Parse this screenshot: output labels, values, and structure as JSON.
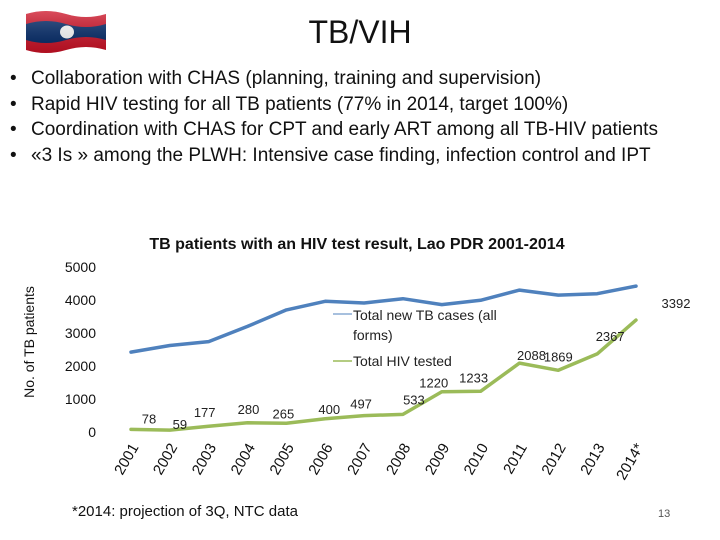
{
  "slide": {
    "title": "TB/VIH",
    "bullets": [
      "Collaboration with CHAS (planning, training and supervision)",
      "Rapid HIV testing for all TB patients (77% in 2014, target 100%)",
      "Coordination with CHAS for  CPT and early ART among all TB-HIV patients",
      "«3 Is » among the PLWH: Intensive case finding, infection control and IPT"
    ],
    "bullet_glyph": "•",
    "footnote": "*2014: projection of 3Q, NTC data",
    "page_number": "13",
    "flag_icon": "laos-flag-icon",
    "colors": {
      "flag_red": "#ce1126",
      "flag_blue": "#002868",
      "flag_white": "#ffffff"
    }
  },
  "chart_data": {
    "type": "line",
    "title": "TB patients with an HIV test result, Lao PDR 2001-2014",
    "xlabel": "",
    "ylabel": "No. of TB patients",
    "ylim": [
      0,
      5000
    ],
    "yticks": [
      0,
      1000,
      2000,
      3000,
      4000,
      5000
    ],
    "grid": false,
    "categories": [
      "2001",
      "2002",
      "2003",
      "2004",
      "2005",
      "2006",
      "2007",
      "2008",
      "2009",
      "2010",
      "2011",
      "2012",
      "2013",
      "2014*"
    ],
    "series": [
      {
        "name": "Total new TB cases (all forms)",
        "color": "#4f81bd",
        "values": [
          2420,
          2620,
          2740,
          3200,
          3700,
          3960,
          3910,
          4040,
          3860,
          3990,
          4300,
          4150,
          4190,
          4420
        ],
        "labels": [
          "",
          "",
          "",
          "",
          "",
          "",
          "",
          "",
          "",
          "",
          "",
          "",
          "",
          ""
        ]
      },
      {
        "name": "Total HIV tested",
        "color": "#9bbb59",
        "values": [
          78,
          59,
          177,
          280,
          265,
          400,
          497,
          533,
          1220,
          1233,
          2088,
          1869,
          2367,
          3392
        ],
        "labels": [
          "78",
          "59",
          "177",
          "280",
          "265",
          "400",
          "497",
          "533",
          "1220",
          "1233",
          "2088",
          "1869",
          "2367",
          "3392"
        ]
      }
    ],
    "legend": "center-right"
  }
}
